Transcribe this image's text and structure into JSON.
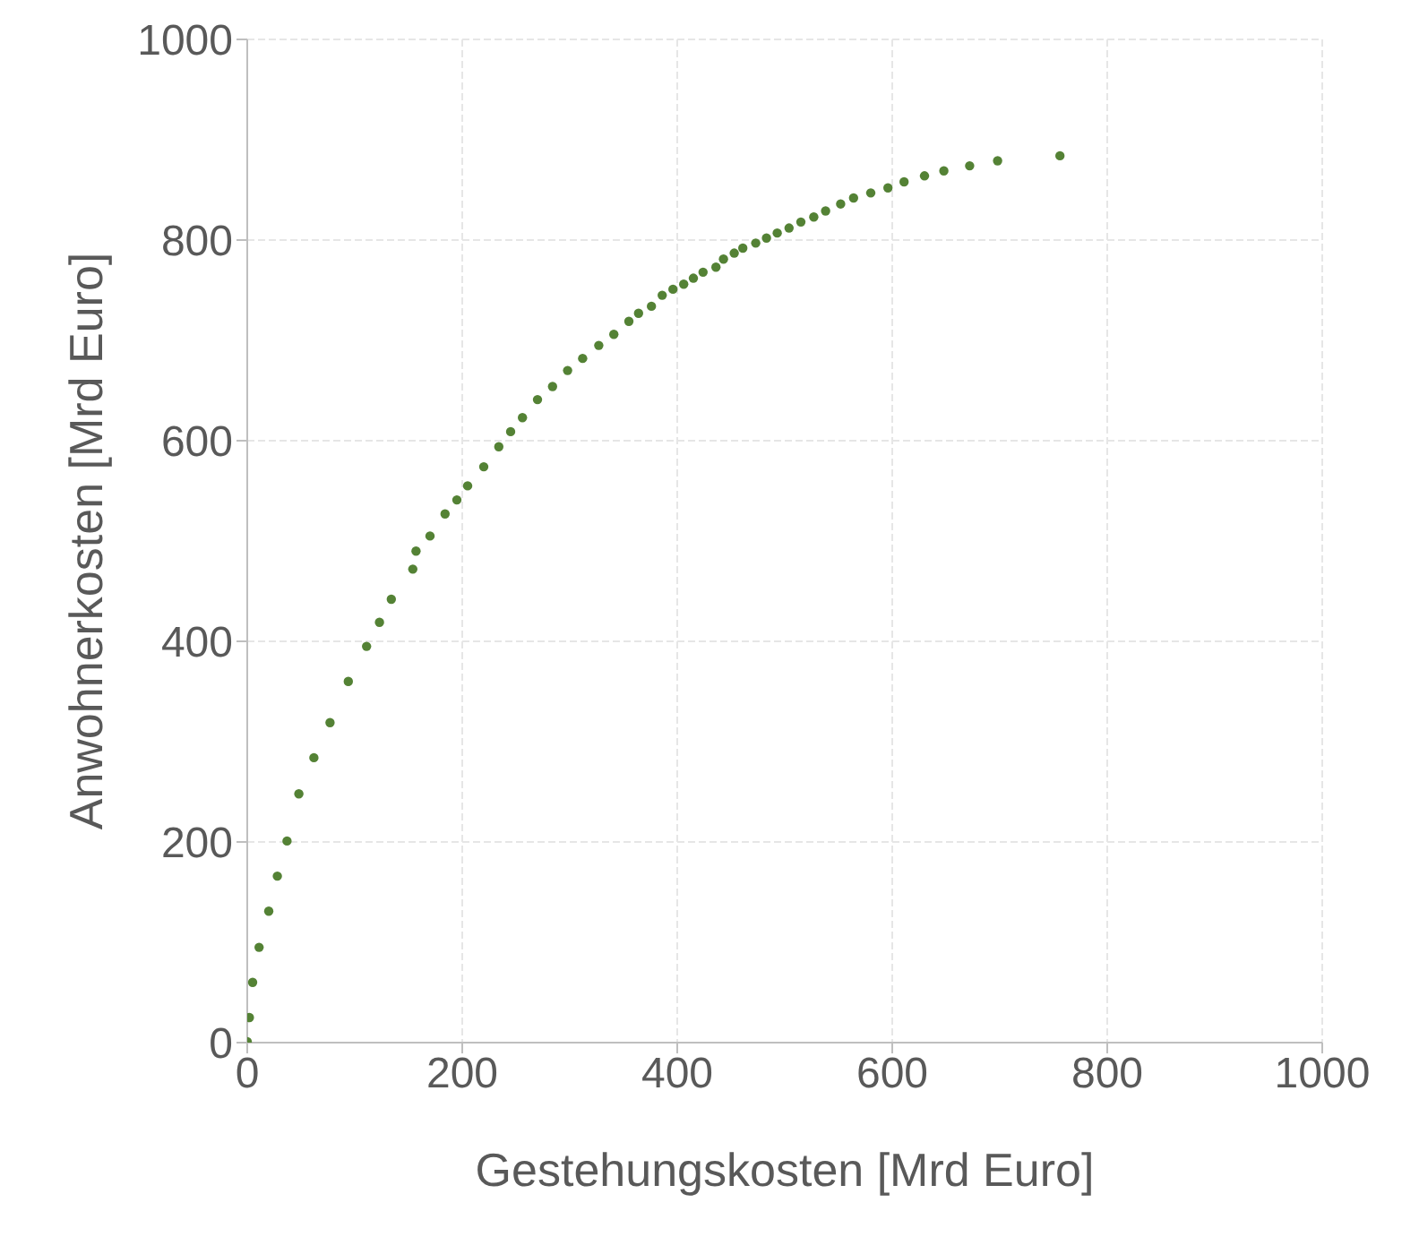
{
  "chart_data": {
    "type": "scatter",
    "xlabel": "Gestehungskosten [Mrd Euro]",
    "ylabel": "Anwohnerkosten  [Mrd Euro]",
    "xlim": [
      0,
      1000
    ],
    "ylim": [
      0,
      1000
    ],
    "xticks": [
      0,
      200,
      400,
      600,
      800,
      1000
    ],
    "yticks": [
      0,
      200,
      400,
      600,
      800,
      1000
    ],
    "grid": true,
    "marker": "circle",
    "series": [
      {
        "color": "#548235",
        "x": [
          0,
          2,
          5,
          11,
          20,
          28,
          37,
          48,
          62,
          77,
          94,
          111,
          123,
          134,
          154,
          157,
          170,
          184,
          195,
          205,
          220,
          234,
          245,
          256,
          270,
          284,
          298,
          312,
          327,
          341,
          355,
          364,
          376,
          386,
          396,
          406,
          415,
          424,
          436,
          443,
          453,
          461,
          473,
          483,
          493,
          504,
          515,
          527,
          538,
          552,
          564,
          580,
          596,
          611,
          630,
          648,
          672,
          698,
          756
        ],
        "values": [
          1,
          25,
          60,
          95,
          131,
          166,
          201,
          248,
          284,
          319,
          360,
          395,
          419,
          442,
          472,
          490,
          505,
          527,
          541,
          555,
          574,
          594,
          609,
          623,
          641,
          654,
          670,
          682,
          695,
          706,
          719,
          727,
          734,
          745,
          751,
          756,
          762,
          768,
          773,
          781,
          787,
          792,
          797,
          802,
          807,
          812,
          818,
          823,
          829,
          836,
          842,
          847,
          852,
          858,
          864,
          869,
          874,
          879,
          884
        ]
      }
    ]
  }
}
